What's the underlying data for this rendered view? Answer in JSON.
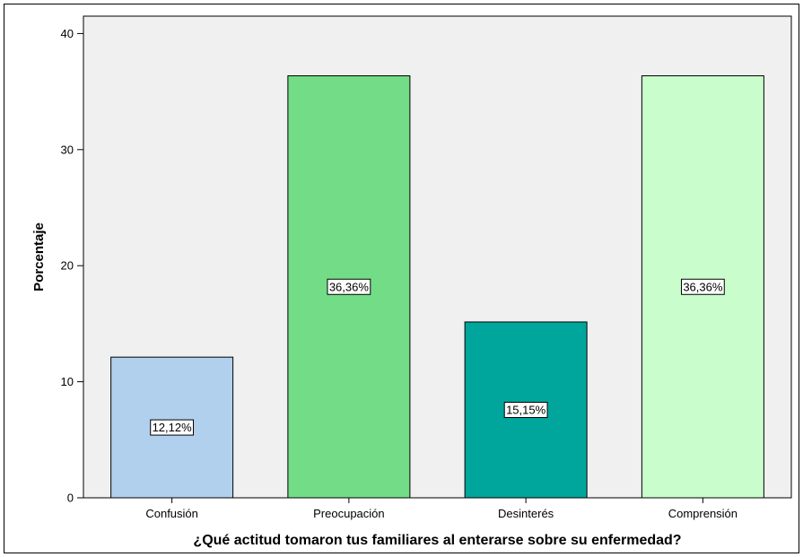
{
  "chart_data": {
    "type": "bar",
    "categories": [
      "Confusión",
      "Preocupación",
      "Desinterés",
      "Comprensión"
    ],
    "values": [
      12.12,
      36.36,
      15.15,
      36.36
    ],
    "data_labels": [
      "12,12%",
      "36,36%",
      "15,15%",
      "36,36%"
    ],
    "colors": [
      "#b1d0ee",
      "#72dc86",
      "#00a59c",
      "#c9fdcb"
    ],
    "plot_background": "#f0f0f0",
    "xlabel": "¿Qué actitud tomaron tus familiares al enterarse sobre su enfermedad?",
    "ylabel": "Porcentaje",
    "ylim": [
      0,
      41.5
    ],
    "yticks": [
      0,
      10,
      20,
      30,
      40
    ],
    "ytick_labels": [
      "0",
      "10",
      "20",
      "30",
      "40"
    ],
    "grid": false,
    "legend": "none"
  }
}
